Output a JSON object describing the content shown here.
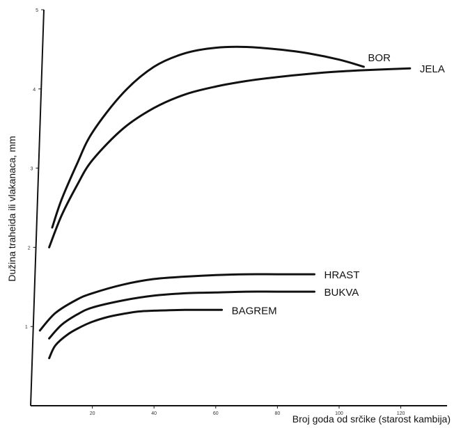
{
  "chart_data": {
    "type": "line",
    "xlabel": "Broj goda od srčike (starost kambija)",
    "ylabel": "Dužina traheida ili  vlakanaca, mm",
    "xlim": [
      0,
      135
    ],
    "ylim": [
      0,
      5
    ],
    "x_ticks": [
      20,
      40,
      60,
      80,
      100,
      120
    ],
    "y_ticks": [
      1,
      2,
      3,
      4,
      5
    ],
    "grid": false,
    "legend": "none",
    "series": [
      {
        "name": "BOR",
        "points": [
          [
            7,
            2.25
          ],
          [
            10,
            2.6
          ],
          [
            15,
            3.05
          ],
          [
            20,
            3.45
          ],
          [
            30,
            3.95
          ],
          [
            40,
            4.28
          ],
          [
            50,
            4.45
          ],
          [
            60,
            4.52
          ],
          [
            70,
            4.53
          ],
          [
            80,
            4.5
          ],
          [
            90,
            4.45
          ],
          [
            100,
            4.37
          ],
          [
            108,
            4.28
          ]
        ]
      },
      {
        "name": "JELA",
        "points": [
          [
            6,
            2.0
          ],
          [
            10,
            2.4
          ],
          [
            15,
            2.78
          ],
          [
            20,
            3.1
          ],
          [
            30,
            3.5
          ],
          [
            40,
            3.76
          ],
          [
            50,
            3.93
          ],
          [
            60,
            4.03
          ],
          [
            70,
            4.1
          ],
          [
            80,
            4.15
          ],
          [
            90,
            4.19
          ],
          [
            100,
            4.22
          ],
          [
            110,
            4.24
          ],
          [
            123,
            4.26
          ]
        ]
      },
      {
        "name": "HRAST",
        "points": [
          [
            3,
            0.95
          ],
          [
            8,
            1.17
          ],
          [
            15,
            1.34
          ],
          [
            20,
            1.42
          ],
          [
            30,
            1.53
          ],
          [
            40,
            1.6
          ],
          [
            50,
            1.63
          ],
          [
            60,
            1.65
          ],
          [
            70,
            1.66
          ],
          [
            80,
            1.66
          ],
          [
            92,
            1.66
          ]
        ]
      },
      {
        "name": "BUKVA",
        "points": [
          [
            6,
            0.85
          ],
          [
            10,
            1.02
          ],
          [
            15,
            1.15
          ],
          [
            20,
            1.24
          ],
          [
            30,
            1.33
          ],
          [
            40,
            1.39
          ],
          [
            50,
            1.42
          ],
          [
            60,
            1.43
          ],
          [
            70,
            1.44
          ],
          [
            80,
            1.44
          ],
          [
            92,
            1.44
          ]
        ]
      },
      {
        "name": "BAGREM",
        "points": [
          [
            6,
            0.6
          ],
          [
            8,
            0.76
          ],
          [
            12,
            0.9
          ],
          [
            16,
            0.99
          ],
          [
            20,
            1.06
          ],
          [
            25,
            1.12
          ],
          [
            30,
            1.16
          ],
          [
            35,
            1.19
          ],
          [
            40,
            1.2
          ],
          [
            50,
            1.21
          ],
          [
            62,
            1.21
          ]
        ]
      }
    ]
  }
}
